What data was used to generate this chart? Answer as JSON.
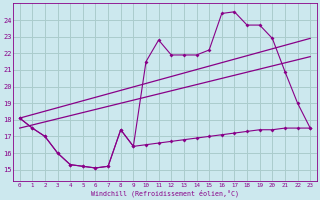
{
  "xlabel": "Windchill (Refroidissement éolien,°C)",
  "background_color": "#cce8ee",
  "grid_color": "#aacccc",
  "line_color": "#880088",
  "x_ticks": [
    0,
    1,
    2,
    3,
    4,
    5,
    6,
    7,
    8,
    9,
    10,
    11,
    12,
    13,
    14,
    15,
    16,
    17,
    18,
    19,
    20,
    21,
    22,
    23
  ],
  "y_ticks": [
    15,
    16,
    17,
    18,
    19,
    20,
    21,
    22,
    23,
    24
  ],
  "xlim": [
    -0.5,
    23.5
  ],
  "ylim": [
    14.3,
    25.0
  ],
  "series": [
    {
      "x": [
        0,
        1,
        2,
        3,
        4,
        5,
        6,
        7,
        8,
        9,
        10,
        11,
        12,
        13,
        14,
        15,
        16,
        17,
        18,
        19,
        20,
        21,
        22,
        23
      ],
      "y": [
        18.1,
        17.5,
        17.0,
        16.0,
        15.3,
        15.2,
        15.1,
        15.2,
        17.4,
        16.4,
        16.5,
        16.6,
        16.7,
        16.8,
        16.9,
        17.0,
        17.1,
        17.2,
        17.3,
        17.4,
        17.4,
        17.5,
        17.5,
        17.5
      ]
    },
    {
      "x": [
        0,
        1,
        2,
        3,
        4,
        5,
        6,
        7,
        8,
        9,
        10,
        11,
        12,
        13,
        14,
        15,
        16,
        17,
        18,
        19,
        20,
        21,
        22,
        23
      ],
      "y": [
        18.1,
        17.5,
        17.0,
        16.0,
        15.3,
        15.2,
        15.1,
        15.2,
        17.4,
        16.4,
        21.5,
        22.8,
        21.9,
        21.9,
        21.9,
        22.2,
        24.4,
        24.5,
        23.7,
        23.7,
        22.9,
        20.9,
        19.0,
        17.5
      ]
    },
    {
      "x": [
        0,
        23
      ],
      "y": [
        18.1,
        22.9
      ]
    },
    {
      "x": [
        0,
        23
      ],
      "y": [
        17.5,
        21.8
      ]
    }
  ]
}
